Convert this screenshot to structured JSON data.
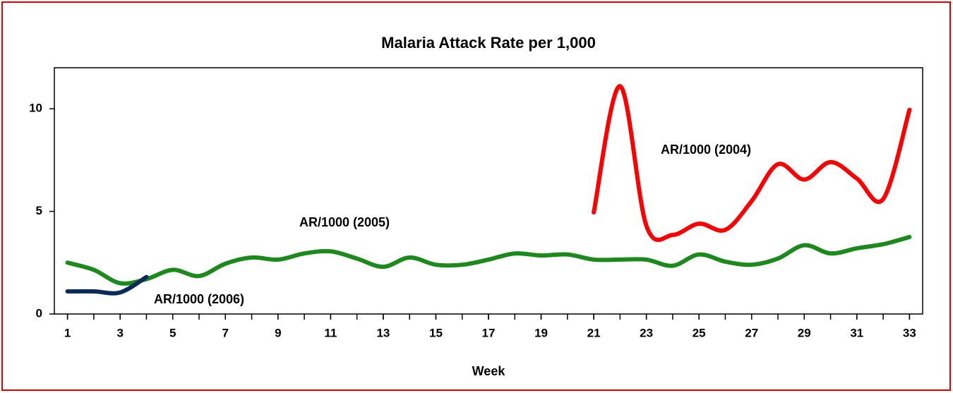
{
  "chart_data": {
    "type": "line",
    "title": "Malaria Attack Rate per 1,000",
    "x_label": "Week",
    "x": [
      1,
      2,
      3,
      4,
      5,
      6,
      7,
      8,
      9,
      10,
      11,
      12,
      13,
      14,
      15,
      16,
      17,
      18,
      19,
      20,
      21,
      22,
      23,
      24,
      25,
      26,
      27,
      28,
      29,
      30,
      31,
      32,
      33
    ],
    "xlim": [
      0.5,
      33.5
    ],
    "xticks": [
      1,
      3,
      5,
      7,
      9,
      11,
      13,
      15,
      17,
      19,
      21,
      23,
      25,
      27,
      29,
      31,
      33
    ],
    "ylim": [
      0,
      12
    ],
    "yticks": [
      0,
      5,
      10
    ],
    "grid": false,
    "series": [
      {
        "name": "AR/1000 (2005)",
        "color": "#1a8a1a",
        "values": [
          2.5,
          2.15,
          1.5,
          1.7,
          2.15,
          1.85,
          2.45,
          2.75,
          2.65,
          2.95,
          3.05,
          2.7,
          2.3,
          2.75,
          2.4,
          2.4,
          2.65,
          2.95,
          2.85,
          2.9,
          2.65,
          2.65,
          2.65,
          2.35,
          2.9,
          2.55,
          2.4,
          2.7,
          3.35,
          2.95,
          3.2,
          3.4,
          3.75
        ]
      },
      {
        "name": "AR/1000 (2004)",
        "color": "#ff0000",
        "values": [
          null,
          null,
          null,
          null,
          null,
          null,
          null,
          null,
          null,
          null,
          null,
          null,
          null,
          null,
          null,
          null,
          null,
          null,
          null,
          null,
          4.95,
          11.1,
          4.3,
          3.85,
          4.4,
          4.1,
          5.5,
          7.3,
          6.55,
          7.4,
          6.6,
          5.6,
          9.95
        ]
      },
      {
        "name": "AR/1000 (2006)",
        "color": "#0a2a5a",
        "values": [
          1.1,
          1.1,
          1.05,
          1.8,
          null,
          null,
          null,
          null,
          null,
          null,
          null,
          null,
          null,
          null,
          null,
          null,
          null,
          null,
          null,
          null,
          null,
          null,
          null,
          null,
          null,
          null,
          null,
          null,
          null,
          null,
          null,
          null,
          null
        ]
      }
    ]
  }
}
